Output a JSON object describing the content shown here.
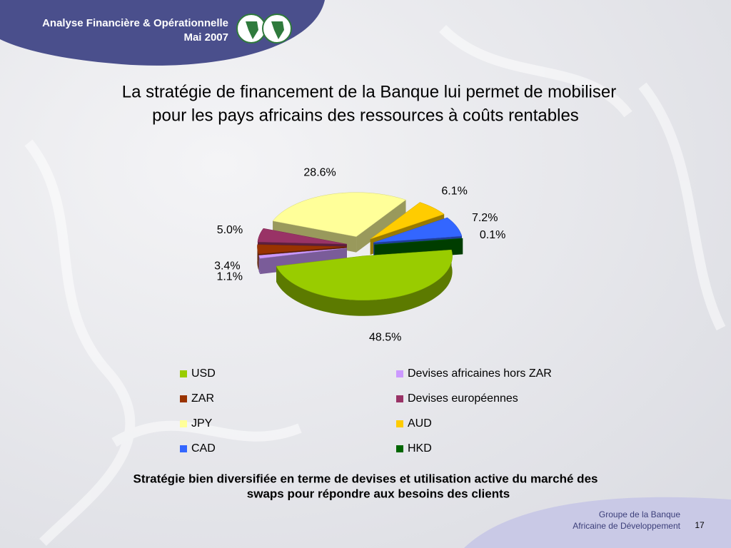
{
  "header": {
    "title": "Analyse Financière & Opérationnelle",
    "date": "Mai 2007"
  },
  "chart_data": {
    "type": "pie",
    "title": [
      "La stratégie de financement de la Banque lui permet de mobiliser",
      "pour les pays africains des ressources à coûts rentables"
    ],
    "categories": [
      "USD",
      "Devises africaines hors ZAR",
      "ZAR",
      "Devises européennes",
      "JPY",
      "AUD",
      "CAD",
      "HKD"
    ],
    "values": [
      48.5,
      1.1,
      3.4,
      5.0,
      28.6,
      6.1,
      7.2,
      0.1
    ],
    "value_labels": [
      "48.5%",
      "1.1%",
      "3.4%",
      "5.0%",
      "28.6%",
      "6.1%",
      "7.2%",
      "0.1%"
    ],
    "colors": [
      "#99cc00",
      "#cc99ff",
      "#993300",
      "#993366",
      "#ffff99",
      "#ffcc00",
      "#3366ff",
      "#006600"
    ],
    "legend": "bottom"
  },
  "caption": [
    "Stratégie bien diversifiée en terme de devises et utilisation active du marché des",
    "swaps pour répondre aux besoins des clients"
  ],
  "footer": {
    "org": [
      "Groupe de la Banque",
      "Africaine de Développement"
    ],
    "page": "17"
  }
}
